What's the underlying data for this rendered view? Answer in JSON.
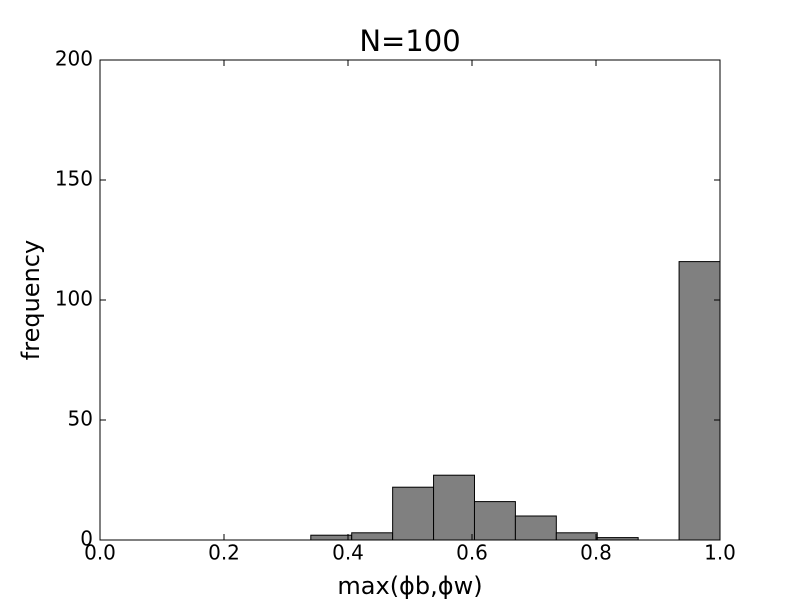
{
  "chart_data": {
    "type": "histogram",
    "title": "N=100",
    "xlabel": "max(ϕb,ϕw)",
    "ylabel": "frequency",
    "bins": [
      0.34,
      0.406,
      0.472,
      0.538,
      0.604,
      0.67,
      0.736,
      0.802,
      0.868,
      0.934,
      1.0
    ],
    "values": [
      2,
      3,
      22,
      27,
      16,
      10,
      3,
      1,
      0,
      116
    ],
    "color": "#808080",
    "xlim": [
      0,
      1
    ],
    "ylim": [
      0,
      200
    ],
    "xticks": [
      {
        "value": 0,
        "label": "0.0"
      },
      {
        "value": 0.2,
        "label": "0.2"
      },
      {
        "value": 0.4,
        "label": "0.4"
      },
      {
        "value": 0.6,
        "label": "0.6"
      },
      {
        "value": 0.8,
        "label": "0.8"
      },
      {
        "value": 1,
        "label": "1.0"
      }
    ],
    "yticks": [
      0,
      50,
      100,
      150,
      200
    ]
  }
}
